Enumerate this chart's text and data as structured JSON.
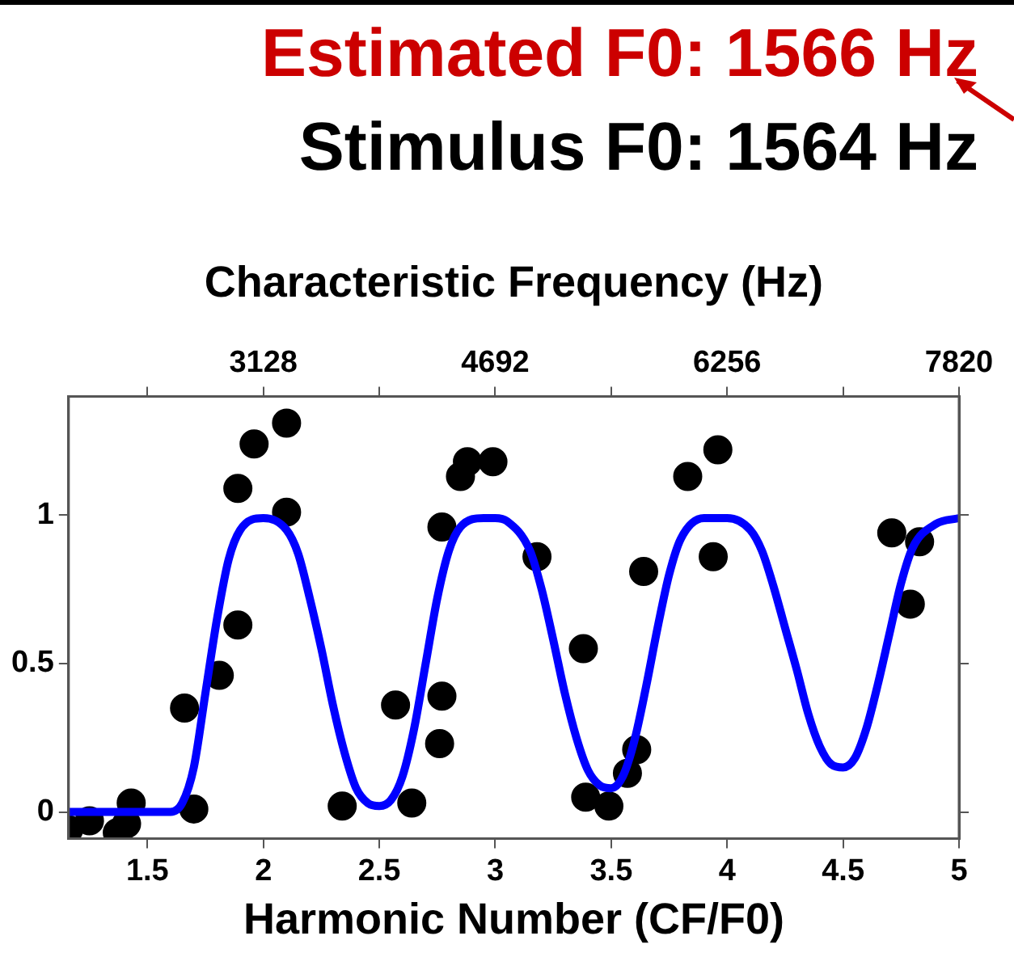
{
  "chart_data": {
    "type": "scatter",
    "title": "Estimated F0: 1566 Hz",
    "subtitle": "Stimulus F0: 1564 Hz",
    "xlabel": "Harmonic Number (CF/F0)",
    "x2label": "Characteristic Frequency (Hz)",
    "xlim": [
      1.16,
      5
    ],
    "xticks": [
      1.5,
      2,
      2.5,
      3,
      3.5,
      4,
      4.5,
      5
    ],
    "x2lim": [
      1814,
      7820
    ],
    "x2ticks": [
      {
        "value": 2346,
        "label": null
      },
      3128,
      {
        "value": 3910,
        "label": null
      },
      4692,
      {
        "value": 5474,
        "label": null
      },
      6256,
      {
        "value": 7038,
        "label": null
      },
      7820
    ],
    "ylim": [
      -0.09,
      1.4
    ],
    "yticks": [
      0,
      0.5,
      1
    ],
    "grid": false,
    "legend": false,
    "series": [
      {
        "color": "#000000",
        "marker": "circle",
        "x": [
          1.16,
          1.25,
          1.37,
          1.41,
          1.43,
          1.66,
          1.7,
          1.81,
          1.89,
          1.89,
          1.96,
          2.1,
          2.1,
          2.34,
          2.57,
          2.64,
          2.76,
          2.77,
          2.77,
          2.85,
          2.88,
          2.99,
          3.18,
          3.38,
          3.39,
          3.49,
          3.57,
          3.61,
          3.64,
          3.83,
          3.96,
          3.94,
          4.71,
          4.83,
          4.79
        ],
        "values": [
          -0.06,
          -0.03,
          -0.07,
          -0.04,
          0.03,
          0.35,
          0.01,
          0.46,
          0.63,
          1.09,
          1.24,
          1.31,
          1.01,
          0.02,
          0.36,
          0.03,
          0.23,
          0.39,
          0.96,
          1.13,
          1.18,
          1.18,
          0.86,
          0.55,
          0.05,
          0.02,
          0.13,
          0.21,
          0.81,
          1.13,
          1.22,
          0.86,
          0.94,
          0.91,
          0.7
        ]
      },
      {
        "type": "line",
        "color": "#0000ff",
        "marker": "none",
        "line_style": "solid",
        "x": [
          1.16,
          1.6,
          1.65,
          1.7,
          1.75,
          1.8,
          1.85,
          1.9,
          2,
          2.1,
          2.15,
          2.2,
          2.25,
          2.3,
          2.35,
          2.4,
          2.45,
          2.5,
          2.55,
          2.6,
          2.65,
          2.7,
          2.75,
          2.8,
          2.85,
          2.95,
          3,
          3.05,
          3.15,
          3.2,
          3.25,
          3.3,
          3.35,
          3.4,
          3.45,
          3.5,
          3.55,
          3.6,
          3.65,
          3.7,
          3.75,
          3.8,
          3.9,
          4,
          4.1,
          4.15,
          4.2,
          4.25,
          4.3,
          4.35,
          4.4,
          4.45,
          4.5,
          4.55,
          4.6,
          4.65,
          4.7,
          4.75,
          4.8,
          4.9,
          5
        ],
        "values": [
          0,
          0,
          0.03,
          0.15,
          0.4,
          0.65,
          0.85,
          0.95,
          0.99,
          0.95,
          0.87,
          0.72,
          0.55,
          0.36,
          0.2,
          0.08,
          0.03,
          0.02,
          0.04,
          0.12,
          0.28,
          0.5,
          0.72,
          0.88,
          0.96,
          0.99,
          0.99,
          0.98,
          0.88,
          0.75,
          0.58,
          0.4,
          0.25,
          0.14,
          0.09,
          0.08,
          0.12,
          0.24,
          0.42,
          0.62,
          0.8,
          0.92,
          0.99,
          0.99,
          0.95,
          0.88,
          0.76,
          0.62,
          0.48,
          0.33,
          0.22,
          0.16,
          0.15,
          0.18,
          0.28,
          0.43,
          0.6,
          0.77,
          0.89,
          0.97,
          0.99
        ]
      }
    ]
  }
}
